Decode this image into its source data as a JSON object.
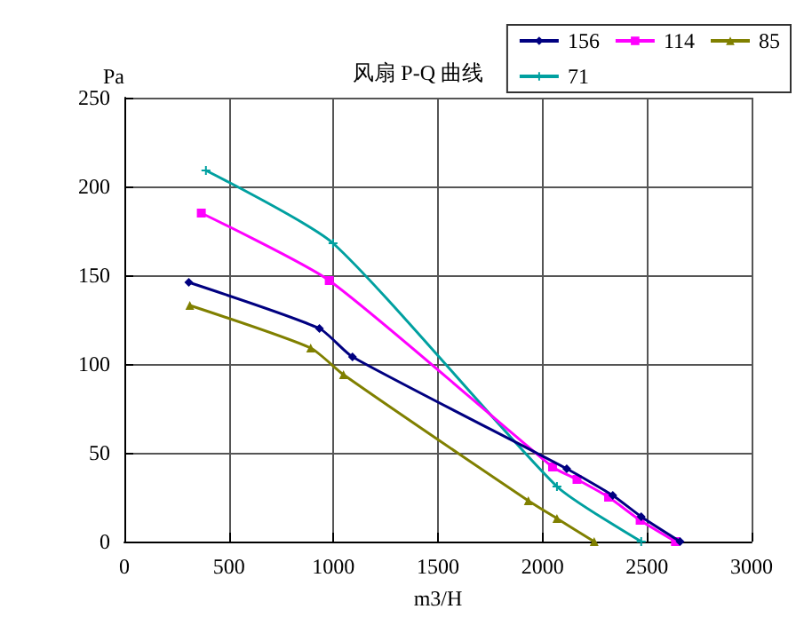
{
  "chart_data": {
    "type": "line",
    "title": "风扇 P-Q 曲线",
    "xlabel": "m3/H",
    "ylabel": "Pa",
    "xlim": [
      0,
      3000
    ],
    "xticks": [
      0,
      500,
      1000,
      1500,
      2000,
      2500,
      3000
    ],
    "ylim": [
      0,
      250
    ],
    "yticks": [
      0,
      50,
      100,
      150,
      200,
      250
    ],
    "grid": true,
    "legend": "top right",
    "series": [
      {
        "name": "156",
        "color": "#000080",
        "marker": "diamond",
        "x": [
          308,
          933,
          1091,
          2116,
          2336,
          2472,
          2658
        ],
        "values": [
          146,
          120,
          104,
          41,
          26,
          14,
          0
        ]
      },
      {
        "name": "114",
        "color": "#ff00ff",
        "marker": "square",
        "x": [
          368,
          980,
          2048,
          2165,
          2316,
          2467,
          2636
        ],
        "values": [
          185,
          147,
          42,
          35,
          25,
          12,
          0
        ]
      },
      {
        "name": "85",
        "color": "#808000",
        "marker": "triangle",
        "x": [
          313,
          891,
          1048,
          1932,
          2069,
          2247
        ],
        "values": [
          133,
          109,
          94,
          23,
          13,
          0
        ]
      },
      {
        "name": "71",
        "color": "#00a0a0",
        "marker": "cross",
        "x": [
          390,
          998,
          2069,
          2472
        ],
        "values": [
          209,
          168,
          31,
          0
        ]
      }
    ]
  }
}
